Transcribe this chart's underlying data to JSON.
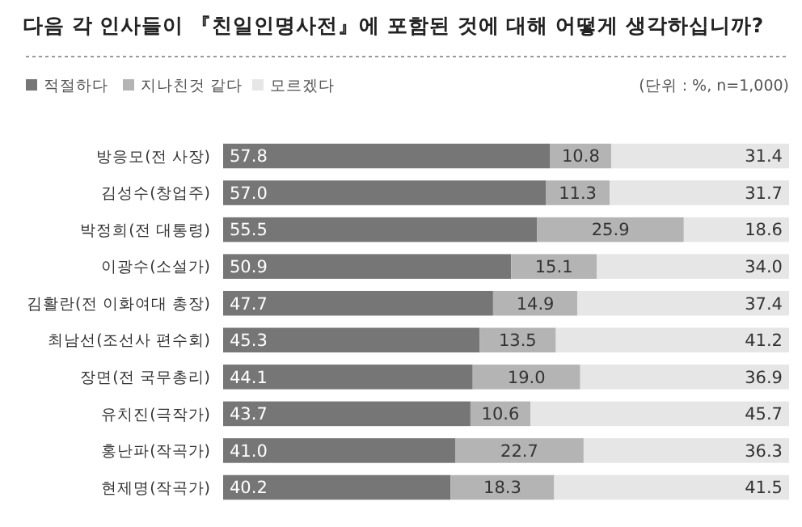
{
  "chart_data": {
    "type": "bar",
    "orientation": "horizontal",
    "stacked": true,
    "title": "다음 각 인사들이 『친일인명사전』에 포함된 것에 대해 어떻게 생각하십니까?",
    "annotations": [
      "(단위 : %, n=1,000)"
    ],
    "categories": [
      "방응모(전 사장)",
      "김성수(창업주)",
      "박정희(전 대통령)",
      "이광수(소설가)",
      "김활란(전 이화여대 총장)",
      "최남선(조선사 편수회)",
      "장면(전 국무총리)",
      "유치진(극작가)",
      "홍난파(작곡가)",
      "현제명(작곡가)"
    ],
    "series": [
      {
        "name": "적절하다",
        "color": "#767676",
        "values": [
          57.8,
          57.0,
          55.5,
          50.9,
          47.7,
          45.3,
          44.1,
          43.7,
          41.0,
          40.2
        ],
        "value_labels": [
          "57.8",
          "57.0",
          "55.5",
          "50.9",
          "47.7",
          "45.3",
          "44.1",
          "43.7",
          "41.0",
          "40.2"
        ]
      },
      {
        "name": "지나친것 같다",
        "color": "#b4b4b4",
        "values": [
          10.8,
          11.3,
          25.9,
          15.1,
          14.9,
          13.5,
          19.0,
          10.6,
          22.7,
          18.3
        ],
        "value_labels": [
          "10.8",
          "11.3",
          "25.9",
          "15.1",
          "14.9",
          "13.5",
          "19.0",
          "10.6",
          "22.7",
          "18.3"
        ]
      },
      {
        "name": "모르겠다",
        "color": "#e6e6e6",
        "values": [
          31.4,
          31.7,
          18.6,
          34.0,
          37.4,
          41.2,
          36.9,
          45.7,
          36.3,
          41.5
        ],
        "value_labels": [
          "31.4",
          "31.7",
          "18.6",
          "34.0",
          "37.4",
          "41.2",
          "36.9",
          "45.7",
          "36.3",
          "41.5"
        ]
      }
    ],
    "xlim": [
      0,
      100
    ],
    "tick_labels": "y",
    "legend": "top"
  }
}
